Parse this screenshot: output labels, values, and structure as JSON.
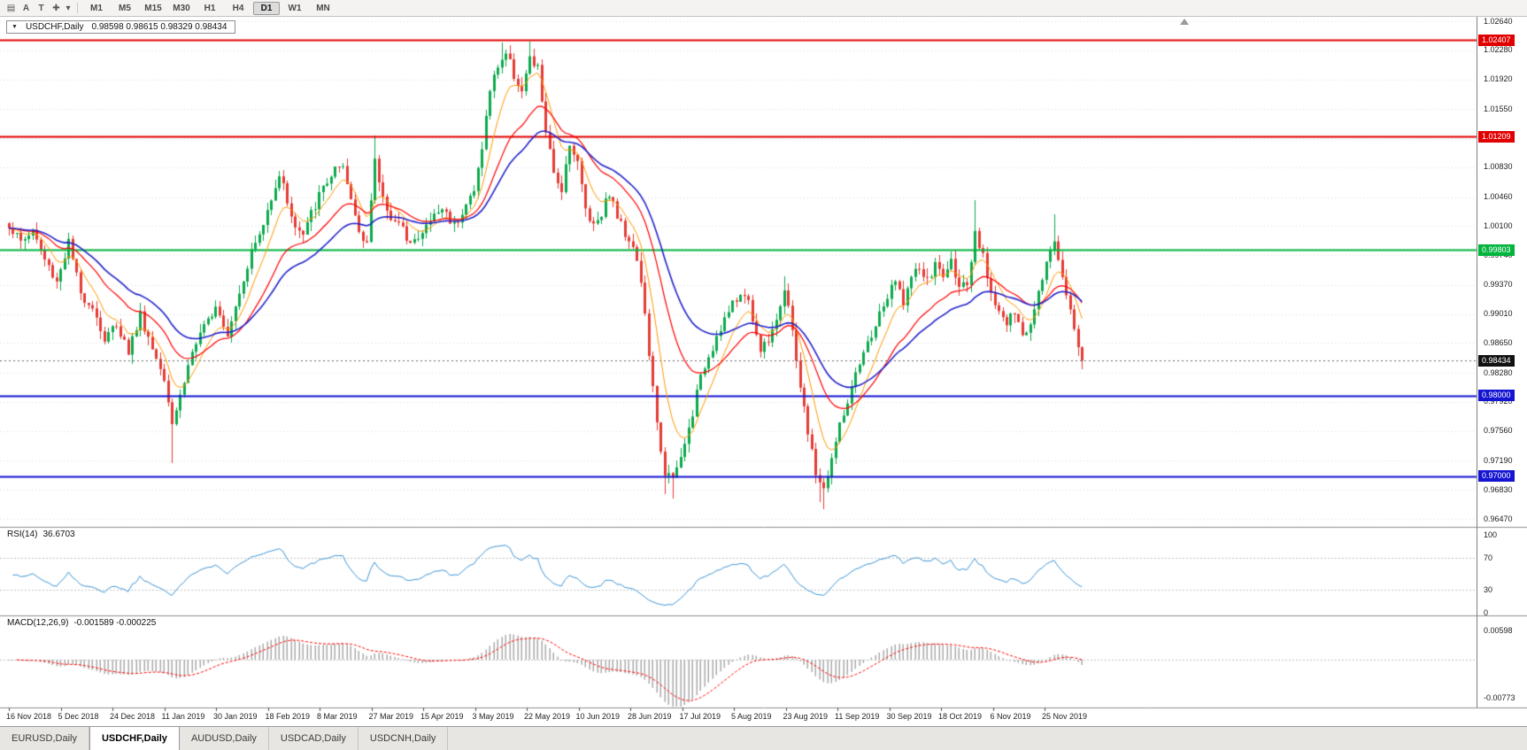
{
  "toolbar": {
    "icons": [
      {
        "name": "chart-type-icon",
        "glyph": "▤"
      },
      {
        "name": "annotation-a-icon",
        "glyph": "A"
      },
      {
        "name": "text-tool-icon",
        "glyph": "T"
      },
      {
        "name": "drawing-tools-icon",
        "glyph": "✚"
      },
      {
        "name": "dropdown-arrow-icon",
        "glyph": "▾"
      }
    ],
    "timeframes": [
      "M1",
      "M5",
      "M15",
      "M30",
      "H1",
      "H4",
      "D1",
      "W1",
      "MN"
    ],
    "active_timeframe": "D1"
  },
  "header": {
    "symbol_period": "USDCHF,Daily",
    "ohlc_text": "0.98598 0.98615 0.98329 0.98434"
  },
  "price_axis": {
    "labels": [
      "1.02640",
      "1.02280",
      "1.01920",
      "1.01550",
      "1.00830",
      "1.00460",
      "1.00100",
      "0.99740",
      "0.99370",
      "0.99010",
      "0.98650",
      "0.98280",
      "0.97920",
      "0.97560",
      "0.97190",
      "0.96830",
      "0.96470"
    ],
    "badges": [
      {
        "text": "1.02407",
        "bg": "#e10000"
      },
      {
        "text": "1.01209",
        "bg": "#e10000"
      },
      {
        "text": "0.99803",
        "bg": "#00b43c"
      },
      {
        "text": "0.98434",
        "bg": "#111111"
      },
      {
        "text": "0.98000",
        "bg": "#1414d2"
      },
      {
        "text": "0.97000",
        "bg": "#1414d2"
      }
    ]
  },
  "rsi": {
    "label": "RSI(14)",
    "value": "36.6703",
    "axis_labels": [
      "100",
      "70",
      "30",
      "0"
    ],
    "line_color": "#3d96d6",
    "levels": [
      70,
      30
    ]
  },
  "macd": {
    "label": "MACD(12,26,9)",
    "values": "-0.001589 -0.000225",
    "axis_labels": [
      "0.00598",
      "-0.00773"
    ],
    "histogram_color": "#ababab",
    "signal_color": "#ff0000"
  },
  "tabs": [
    {
      "label": "EURUSD,Daily",
      "active": false
    },
    {
      "label": "USDCHF,Daily",
      "active": true
    },
    {
      "label": "AUDUSD,Daily",
      "active": false
    },
    {
      "label": "USDCAD,Daily",
      "active": false
    },
    {
      "label": "USDCNH,Daily",
      "active": false
    }
  ],
  "colors": {
    "up_candle": "#0caa4d",
    "down_candle": "#e53c35",
    "ma_fast": "#ff9900",
    "ma_medium": "#ff0000",
    "ma_slow": "#2323cc",
    "grid": "#dadada",
    "current_price_line": "#666666"
  },
  "chart_data": {
    "type": "candlestick",
    "symbol": "USDCHF",
    "period": "Daily",
    "title": "USDCHF,Daily",
    "bars_total": 271,
    "bars_per_tick": 13,
    "x_tick_labels": [
      "16 Nov 2018",
      "5 Dec 2018",
      "24 Dec 2018",
      "11 Jan 2019",
      "30 Jan 2019",
      "18 Feb 2019",
      "8 Mar 2019",
      "27 Mar 2019",
      "15 Apr 2019",
      "3 May 2019",
      "22 May 2019",
      "10 Jun 2019",
      "28 Jun 2019",
      "17 Jul 2019",
      "5 Aug 2019",
      "23 Aug 2019",
      "11 Sep 2019",
      "30 Sep 2019",
      "18 Oct 2019",
      "6 Nov 2019",
      "25 Nov 2019"
    ],
    "y_axis": {
      "visible_min": 0.9647,
      "visible_max": 1.0264,
      "grid": "horizontal-dotted"
    },
    "extra_grid_prices": [
      1.0119
    ],
    "close_anchors": [
      [
        0,
        1.0012
      ],
      [
        3,
        0.999
      ],
      [
        6,
        1.0005
      ],
      [
        9,
        0.9968
      ],
      [
        12,
        0.9942
      ],
      [
        15,
        0.999
      ],
      [
        18,
        0.9925
      ],
      [
        21,
        0.9912
      ],
      [
        24,
        0.9868
      ],
      [
        27,
        0.989
      ],
      [
        30,
        0.9855
      ],
      [
        33,
        0.99
      ],
      [
        36,
        0.9858
      ],
      [
        39,
        0.9825
      ],
      [
        41,
        0.9768
      ],
      [
        43,
        0.98
      ],
      [
        46,
        0.9855
      ],
      [
        49,
        0.9882
      ],
      [
        52,
        0.9915
      ],
      [
        55,
        0.9878
      ],
      [
        58,
        0.993
      ],
      [
        61,
        0.9978
      ],
      [
        64,
        1.001
      ],
      [
        66,
        1.0048
      ],
      [
        68,
        1.0075
      ],
      [
        70,
        1.0042
      ],
      [
        72,
        1.0008
      ],
      [
        74,
        0.9998
      ],
      [
        76,
        1.0025
      ],
      [
        79,
        1.0058
      ],
      [
        82,
        1.008
      ],
      [
        84,
        1.0078
      ],
      [
        86,
        1.0042
      ],
      [
        88,
        1.0005
      ],
      [
        90,
        0.9992
      ],
      [
        92,
        1.0088
      ],
      [
        94,
        1.0045
      ],
      [
        96,
        1.0022
      ],
      [
        98,
        1.001
      ],
      [
        100,
        0.9998
      ],
      [
        103,
        0.9992
      ],
      [
        106,
        1.0018
      ],
      [
        109,
        1.0032
      ],
      [
        112,
        1.0012
      ],
      [
        115,
        1.0038
      ],
      [
        117,
        1.0052
      ],
      [
        119,
        1.011
      ],
      [
        121,
        1.0178
      ],
      [
        123,
        1.021
      ],
      [
        125,
        1.0225
      ],
      [
        127,
        1.0198
      ],
      [
        129,
        1.0178
      ],
      [
        131,
        1.0215
      ],
      [
        133,
        1.0205
      ],
      [
        135,
        1.0128
      ],
      [
        137,
        1.0072
      ],
      [
        139,
        1.0058
      ],
      [
        141,
        1.0115
      ],
      [
        143,
        1.0088
      ],
      [
        145,
        1.0032
      ],
      [
        147,
        1.0012
      ],
      [
        149,
        1.0028
      ],
      [
        151,
        1.0052
      ],
      [
        153,
        1.0022
      ],
      [
        155,
        1.0002
      ],
      [
        157,
        0.9988
      ],
      [
        159,
        0.9942
      ],
      [
        161,
        0.9852
      ],
      [
        163,
        0.9762
      ],
      [
        165,
        0.9706
      ],
      [
        167,
        0.9694
      ],
      [
        169,
        0.9722
      ],
      [
        171,
        0.9758
      ],
      [
        173,
        0.9802
      ],
      [
        175,
        0.9838
      ],
      [
        177,
        0.9862
      ],
      [
        179,
        0.9886
      ],
      [
        181,
        0.9904
      ],
      [
        183,
        0.9918
      ],
      [
        185,
        0.993
      ],
      [
        187,
        0.9896
      ],
      [
        189,
        0.9856
      ],
      [
        191,
        0.9872
      ],
      [
        193,
        0.9898
      ],
      [
        195,
        0.9928
      ],
      [
        197,
        0.9882
      ],
      [
        199,
        0.9812
      ],
      [
        201,
        0.9752
      ],
      [
        203,
        0.9705
      ],
      [
        205,
        0.9682
      ],
      [
        207,
        0.9722
      ],
      [
        209,
        0.9762
      ],
      [
        211,
        0.9792
      ],
      [
        213,
        0.9822
      ],
      [
        215,
        0.985
      ],
      [
        218,
        0.9888
      ],
      [
        221,
        0.9922
      ],
      [
        223,
        0.994
      ],
      [
        225,
        0.9918
      ],
      [
        227,
        0.9945
      ],
      [
        229,
        0.9958
      ],
      [
        231,
        0.994
      ],
      [
        233,
        0.9962
      ],
      [
        235,
        0.9948
      ],
      [
        237,
        0.9965
      ],
      [
        239,
        0.994
      ],
      [
        241,
        0.993
      ],
      [
        243,
        0.9998
      ],
      [
        245,
        0.997
      ],
      [
        247,
        0.993
      ],
      [
        249,
        0.9905
      ],
      [
        251,
        0.9888
      ],
      [
        253,
        0.9902
      ],
      [
        255,
        0.9872
      ],
      [
        257,
        0.989
      ],
      [
        259,
        0.9935
      ],
      [
        261,
        0.9965
      ],
      [
        263,
        0.9992
      ],
      [
        265,
        0.995
      ],
      [
        267,
        0.9905
      ],
      [
        269,
        0.98598
      ],
      [
        270,
        0.98434
      ]
    ],
    "wick_overrides": [
      {
        "i": 41,
        "low": 0.9716
      },
      {
        "i": 92,
        "high": 1.0122
      },
      {
        "i": 124,
        "high": 1.0238
      },
      {
        "i": 131,
        "high": 1.0239
      },
      {
        "i": 165,
        "low": 0.9678
      },
      {
        "i": 167,
        "low": 0.9672
      },
      {
        "i": 195,
        "high": 0.9948
      },
      {
        "i": 204,
        "low": 0.9668
      },
      {
        "i": 205,
        "low": 0.9659
      },
      {
        "i": 243,
        "high": 1.0042
      },
      {
        "i": 263,
        "high": 1.0025
      }
    ],
    "last_bar": {
      "open": 0.98598,
      "high": 0.98615,
      "low": 0.98329,
      "close": 0.98434
    },
    "current_price": 0.98434,
    "horizontal_levels": [
      {
        "price": 1.02407,
        "color": "#e10000",
        "width": 2
      },
      {
        "price": 1.01209,
        "color": "#e10000",
        "width": 2
      },
      {
        "price": 0.99803,
        "color": "#00b43c",
        "width": 2
      },
      {
        "price": 0.98,
        "color": "#1414d2",
        "width": 2
      },
      {
        "price": 0.97,
        "color": "#1414d2",
        "width": 2
      }
    ],
    "moving_averages": [
      {
        "name": "fast",
        "period": 8,
        "color": "#ff9900"
      },
      {
        "name": "medium",
        "period": 21,
        "color": "#ff0000"
      },
      {
        "name": "slow",
        "period": 34,
        "color": "#2323cc"
      }
    ],
    "indicators": [
      {
        "name": "RSI",
        "params": "14",
        "current_value": 36.6703,
        "levels": [
          100,
          70,
          30,
          0
        ]
      },
      {
        "name": "MACD",
        "params": "12,26,9",
        "main_value": -0.001589,
        "signal_value": -0.000225,
        "axis_range": [
          0.00598,
          -0.00773
        ]
      }
    ],
    "seed": 1337,
    "noise": 0.0007,
    "wick_noise": 0.0011
  }
}
